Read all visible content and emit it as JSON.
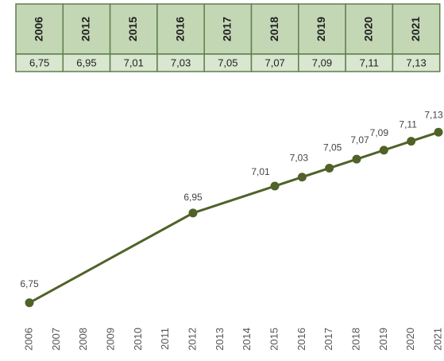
{
  "chart_data": {
    "type": "line",
    "x": [
      2006,
      2012,
      2015,
      2016,
      2017,
      2018,
      2019,
      2020,
      2021
    ],
    "series": [
      {
        "color": "#4f6228",
        "values": [
          6.75,
          6.95,
          7.01,
          7.03,
          7.05,
          7.07,
          7.09,
          7.11,
          7.13
        ],
        "value_labels": [
          "6,75",
          "6,95",
          "7,01",
          "7,03",
          "7,05",
          "7,07",
          "7,09",
          "7,11",
          "7,13"
        ]
      }
    ],
    "xlim": [
      2006,
      2021
    ],
    "xticks": [
      2006,
      2007,
      2008,
      2009,
      2010,
      2011,
      2012,
      2013,
      2014,
      2015,
      2016,
      2017,
      2018,
      2019,
      2020,
      2021
    ],
    "ylim": [
      6.7,
      7.15
    ]
  }
}
